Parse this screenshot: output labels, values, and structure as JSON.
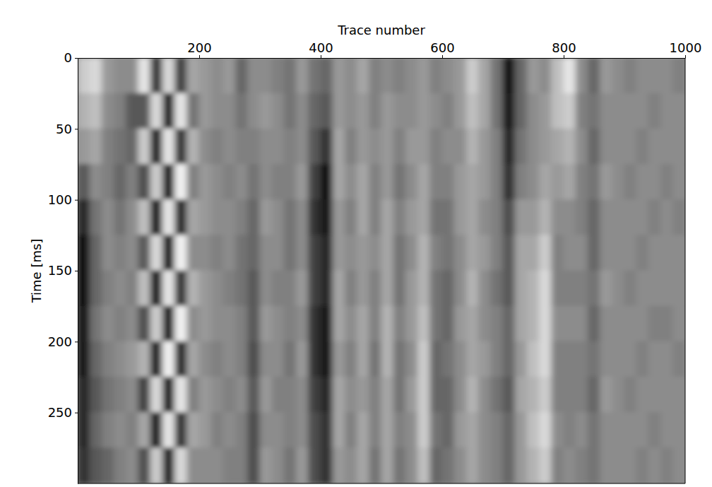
{
  "chart_data": {
    "type": "heatmap",
    "x_label": "Trace number",
    "y_label": "Time [ms]",
    "color": "gray",
    "xlim": [
      0,
      1000
    ],
    "ylim": [
      300,
      0
    ],
    "xticks": [
      200,
      400,
      600,
      800,
      1000
    ],
    "yticks": [
      0,
      50,
      100,
      150,
      200,
      250
    ],
    "x": [
      10,
      30,
      50,
      70,
      90,
      110,
      130,
      150,
      170,
      190,
      210,
      230,
      250,
      270,
      290,
      310,
      330,
      350,
      370,
      390,
      410,
      430,
      450,
      470,
      490,
      510,
      530,
      550,
      570,
      590,
      610,
      630,
      650,
      670,
      690,
      710,
      730,
      750,
      770,
      790,
      810,
      830,
      850,
      870,
      890,
      910,
      930,
      950,
      970,
      990
    ],
    "y": [
      12.5,
      37.5,
      62.5,
      87.5,
      112.5,
      137.5,
      162.5,
      187.5,
      212.5,
      237.5,
      262.5,
      287.5
    ],
    "cells": [
      [
        0.6,
        0.4,
        0.2,
        -0.3,
        -0.7,
        -0.9,
        -0.9,
        -0.8,
        -0.8,
        -0.7,
        -0.7,
        -0.6
      ],
      [
        0.7,
        0.5,
        0.3,
        0.1,
        -0.1,
        -0.2,
        -0.2,
        -0.1,
        -0.2,
        -0.3,
        -0.2,
        -0.3
      ],
      [
        0.2,
        0.1,
        0.0,
        0.0,
        0.1,
        0.1,
        0.0,
        0.1,
        0.0,
        -0.1,
        0.0,
        -0.2
      ],
      [
        0.1,
        0.0,
        -0.1,
        -0.2,
        -0.1,
        0.0,
        0.1,
        0.0,
        0.1,
        0.0,
        0.1,
        0.0
      ],
      [
        0.1,
        -0.3,
        -0.2,
        0.0,
        0.1,
        0.1,
        0.0,
        0.1,
        0.2,
        0.1,
        0.0,
        0.1
      ],
      [
        0.8,
        -0.3,
        0.6,
        -0.4,
        0.5,
        -0.3,
        0.5,
        -0.4,
        0.4,
        -0.5,
        0.3,
        -0.4
      ],
      [
        -0.6,
        0.7,
        -0.8,
        0.6,
        -0.9,
        0.7,
        -0.9,
        0.6,
        -0.8,
        0.7,
        -0.8,
        0.6
      ],
      [
        0.7,
        -0.8,
        0.8,
        -0.9,
        0.8,
        -1.0,
        0.8,
        -0.9,
        0.9,
        -0.9,
        0.8,
        -0.8
      ],
      [
        -0.5,
        0.8,
        -0.6,
        0.9,
        -0.7,
        0.9,
        -0.6,
        0.9,
        -0.7,
        0.8,
        -0.6,
        0.7
      ],
      [
        0.3,
        -0.1,
        0.4,
        0.0,
        0.3,
        0.1,
        0.4,
        0.1,
        0.3,
        0.0,
        0.3,
        0.1
      ],
      [
        0.2,
        0.2,
        0.1,
        0.2,
        0.2,
        0.1,
        0.2,
        0.2,
        0.1,
        0.2,
        0.2,
        0.1
      ],
      [
        0.1,
        0.1,
        0.0,
        0.1,
        0.1,
        0.0,
        0.1,
        0.1,
        0.0,
        0.1,
        0.0,
        0.1
      ],
      [
        0.2,
        0.1,
        0.1,
        0.0,
        0.1,
        0.1,
        0.0,
        0.1,
        0.1,
        0.0,
        0.1,
        0.0
      ],
      [
        -0.2,
        -0.1,
        0.0,
        0.1,
        0.0,
        -0.1,
        -0.1,
        0.0,
        0.0,
        0.1,
        0.0,
        0.0
      ],
      [
        0.1,
        0.1,
        0.0,
        -0.1,
        -0.2,
        -0.2,
        -0.3,
        -0.3,
        -0.4,
        -0.3,
        -0.4,
        -0.4
      ],
      [
        0.1,
        0.2,
        0.1,
        0.1,
        0.2,
        0.1,
        0.1,
        0.2,
        0.1,
        0.2,
        0.1,
        0.2
      ],
      [
        0.0,
        0.1,
        0.1,
        0.0,
        0.1,
        0.1,
        0.0,
        0.1,
        0.1,
        0.0,
        0.1,
        0.1
      ],
      [
        -0.1,
        -0.1,
        0.0,
        0.0,
        -0.1,
        -0.1,
        0.0,
        0.0,
        -0.1,
        0.0,
        0.0,
        -0.1
      ],
      [
        0.2,
        0.1,
        0.1,
        0.2,
        0.1,
        0.1,
        0.2,
        0.1,
        0.2,
        0.1,
        0.1,
        0.2
      ],
      [
        -0.1,
        -0.2,
        -0.3,
        -0.5,
        -0.6,
        -0.5,
        -0.5,
        -0.6,
        -0.6,
        -0.5,
        -0.4,
        -0.4
      ],
      [
        -0.2,
        -0.3,
        -0.6,
        -0.9,
        -0.8,
        -0.7,
        -0.7,
        -0.8,
        -0.8,
        -0.7,
        -0.6,
        -0.6
      ],
      [
        0.2,
        0.2,
        0.3,
        0.3,
        0.2,
        0.2,
        0.3,
        0.3,
        0.2,
        0.3,
        0.3,
        0.2
      ],
      [
        0.1,
        0.1,
        0.0,
        0.1,
        0.0,
        0.1,
        0.0,
        0.1,
        0.0,
        0.1,
        0.0,
        0.1
      ],
      [
        0.3,
        0.2,
        0.2,
        0.3,
        0.3,
        0.2,
        0.2,
        0.3,
        0.3,
        0.2,
        0.3,
        0.3
      ],
      [
        0.0,
        0.0,
        0.1,
        0.0,
        0.0,
        0.1,
        0.0,
        0.0,
        -0.1,
        0.0,
        0.0,
        -0.1
      ],
      [
        0.1,
        0.2,
        0.2,
        0.2,
        0.3,
        0.3,
        0.3,
        0.4,
        0.4,
        0.3,
        0.3,
        0.3
      ],
      [
        0.0,
        0.1,
        0.0,
        -0.1,
        0.0,
        -0.1,
        -0.1,
        0.0,
        -0.1,
        -0.1,
        0.0,
        -0.1
      ],
      [
        0.1,
        0.1,
        0.2,
        0.1,
        0.2,
        0.1,
        0.2,
        0.2,
        0.1,
        0.2,
        0.1,
        0.1
      ],
      [
        0.2,
        0.2,
        0.2,
        0.3,
        0.3,
        0.4,
        0.4,
        0.5,
        0.6,
        0.6,
        0.6,
        0.5
      ],
      [
        0.0,
        0.1,
        0.0,
        0.0,
        -0.1,
        0.0,
        -0.1,
        -0.1,
        -0.2,
        -0.2,
        -0.1,
        -0.2
      ],
      [
        0.1,
        0.0,
        0.1,
        0.0,
        -0.1,
        -0.1,
        -0.2,
        -0.2,
        -0.1,
        -0.2,
        -0.2,
        -0.1
      ],
      [
        0.2,
        0.2,
        0.1,
        0.2,
        0.2,
        0.1,
        0.1,
        0.2,
        0.1,
        0.1,
        0.2,
        0.1
      ],
      [
        0.6,
        0.5,
        0.4,
        0.3,
        0.3,
        0.3,
        0.4,
        0.3,
        0.3,
        0.4,
        0.3,
        0.3
      ],
      [
        0.3,
        0.3,
        0.2,
        0.2,
        0.1,
        0.2,
        0.1,
        0.1,
        0.2,
        0.1,
        0.1,
        0.1
      ],
      [
        -0.1,
        -0.1,
        0.0,
        0.0,
        0.0,
        0.0,
        -0.1,
        0.0,
        0.0,
        -0.1,
        0.0,
        0.0
      ],
      [
        -0.9,
        -0.8,
        -0.7,
        -0.6,
        -0.4,
        -0.3,
        -0.3,
        -0.2,
        -0.2,
        -0.3,
        -0.2,
        -0.2
      ],
      [
        -0.2,
        -0.2,
        -0.1,
        0.0,
        0.2,
        0.3,
        0.3,
        0.3,
        0.2,
        0.3,
        0.2,
        0.2
      ],
      [
        0.2,
        0.1,
        0.1,
        0.1,
        0.2,
        0.3,
        0.4,
        0.4,
        0.5,
        0.4,
        0.5,
        0.4
      ],
      [
        0.1,
        0.2,
        0.2,
        0.3,
        0.4,
        0.6,
        0.7,
        0.7,
        0.7,
        0.6,
        0.7,
        0.6
      ],
      [
        0.5,
        0.5,
        0.3,
        0.2,
        0.1,
        0.0,
        0.0,
        0.1,
        0.0,
        0.0,
        0.1,
        0.0
      ],
      [
        0.8,
        0.6,
        0.4,
        0.3,
        0.1,
        0.1,
        0.0,
        0.1,
        0.0,
        0.0,
        0.0,
        0.1
      ],
      [
        0.1,
        0.0,
        0.1,
        0.0,
        0.0,
        0.1,
        0.0,
        0.1,
        0.0,
        0.0,
        0.1,
        0.0
      ],
      [
        -0.2,
        -0.1,
        -0.2,
        -0.1,
        -0.2,
        -0.2,
        -0.1,
        -0.2,
        -0.1,
        -0.2,
        -0.1,
        -0.1
      ],
      [
        0.2,
        0.1,
        0.1,
        0.2,
        0.1,
        0.1,
        0.2,
        0.1,
        0.1,
        0.2,
        0.1,
        0.1
      ],
      [
        0.1,
        0.1,
        0.1,
        0.1,
        0.1,
        0.1,
        0.1,
        0.1,
        0.1,
        0.1,
        0.1,
        0.1
      ],
      [
        0.0,
        0.1,
        0.1,
        0.0,
        0.1,
        0.1,
        0.0,
        0.1,
        0.1,
        0.0,
        0.1,
        0.1
      ],
      [
        0.1,
        0.1,
        0.0,
        0.1,
        0.1,
        0.0,
        0.1,
        0.1,
        0.0,
        0.1,
        0.1,
        0.0
      ],
      [
        0.1,
        0.0,
        0.1,
        0.1,
        0.0,
        0.1,
        0.1,
        0.0,
        0.1,
        0.1,
        0.0,
        0.1
      ],
      [
        0.1,
        0.1,
        0.1,
        0.0,
        0.1,
        0.1,
        0.1,
        0.0,
        0.1,
        0.1,
        0.1,
        0.0
      ],
      [
        0.0,
        0.1,
        0.1,
        0.1,
        0.0,
        0.1,
        0.1,
        0.1,
        0.0,
        0.1,
        0.1,
        0.1
      ]
    ]
  }
}
